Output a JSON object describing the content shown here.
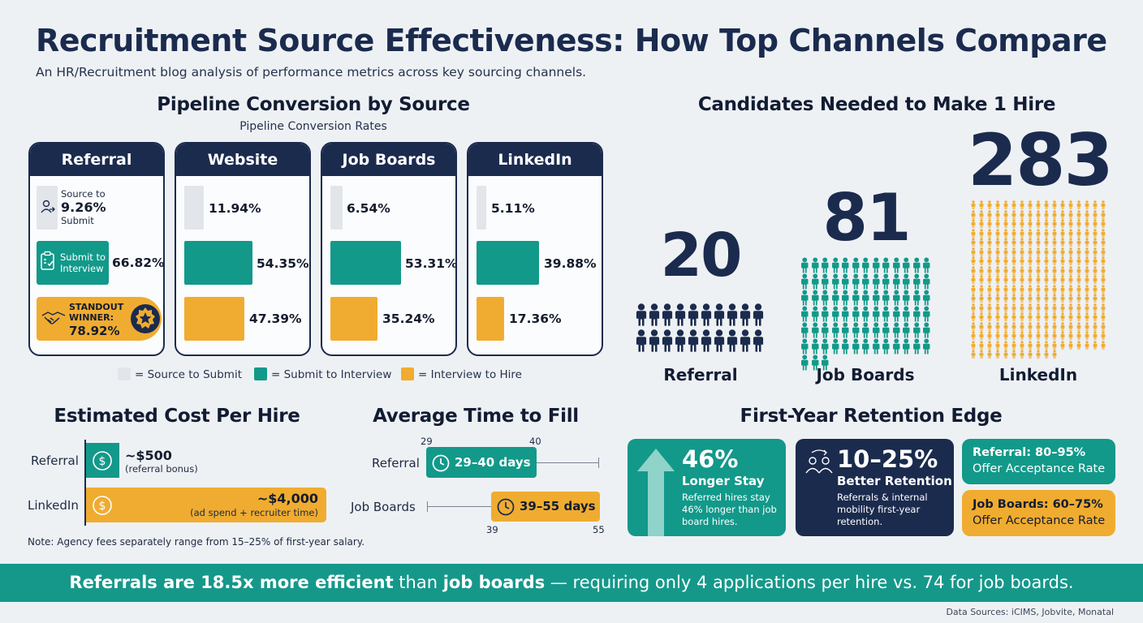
{
  "title": "Recruitment Source Effectiveness: How Top Channels Compare",
  "subtitle": "An HR/Recruitment blog analysis of performance metrics across key sourcing channels.",
  "pipeline": {
    "heading": "Pipeline Conversion by Source",
    "subheading": "Pipeline Conversion Rates",
    "referral": {
      "name": "Referral",
      "source_label_top": "Source to",
      "source_value": "9.26%",
      "source_label_bottom": "Submit",
      "submit_label_1": "Submit to",
      "submit_label_2": "Interview",
      "submit_value": "66.82%",
      "winner_label_1": "STANDOUT",
      "winner_label_2": "WINNER:",
      "winner_value": "78.92%"
    },
    "website": {
      "name": "Website",
      "source": "11.94%",
      "submit": "54.35%",
      "interview": "47.39%"
    },
    "jobboards": {
      "name": "Job Boards",
      "source": "6.54%",
      "submit": "53.31%",
      "interview": "35.24%"
    },
    "linkedin": {
      "name": "LinkedIn",
      "source": "5.11%",
      "submit": "39.88%",
      "interview": "17.36%"
    },
    "legend": {
      "source": "= Source to Submit",
      "submit": "= Submit to Interview",
      "interview": "= Interview to Hire"
    },
    "colors": {
      "source": "#e2e5ea",
      "submit": "#12998a",
      "interview": "#f0ac30",
      "navy": "#1b2b4e"
    }
  },
  "candidates": {
    "heading": "Candidates Needed to Make 1 Hire",
    "referral": {
      "value": "20",
      "label": "Referral",
      "count": 20
    },
    "jobboards": {
      "value": "81",
      "label": "Job Boards",
      "count": 81
    },
    "linkedin": {
      "value": "283",
      "label": "LinkedIn",
      "count": 283
    }
  },
  "cost": {
    "heading": "Estimated Cost Per Hire",
    "referral": {
      "label": "Referral",
      "value": "~$500",
      "note": "(referral bonus)"
    },
    "linkedin": {
      "label": "LinkedIn",
      "value": "~$4,000",
      "note": "(ad spend + recruiter time)"
    },
    "note": "Note: Agency fees separately range from 15–25% of first-year salary."
  },
  "time": {
    "heading": "Average Time to Fill",
    "referral": {
      "label": "Referral",
      "value": "29–40 days",
      "min": "29",
      "max": "40"
    },
    "jobboards": {
      "label": "Job Boards",
      "value": "39–55 days",
      "min": "39",
      "max": "55"
    }
  },
  "retention": {
    "heading": "First-Year Retention Edge",
    "card1": {
      "big": "46%",
      "title": "Longer Stay",
      "body_1": "Referred hires stay",
      "body_2": "46% longer than job",
      "body_3": "board hires."
    },
    "card2": {
      "big": "10–25%",
      "title": "Better Retention",
      "body_1": "Referrals & internal",
      "body_2": "mobility first-year",
      "body_3": "retention."
    },
    "card3": {
      "line1": "Referral: 80–95%",
      "line2": "Offer Acceptance Rate"
    },
    "card4": {
      "line1": "Job Boards: 60–75%",
      "line2": "Offer Acceptance Rate"
    }
  },
  "footer": {
    "part1": "Referrals are 18.5x more efficient",
    "part2": " than ",
    "part3": "job boards",
    "part4": " — requiring only 4 applications per hire vs. 74 for job boards."
  },
  "sources": "Data Sources: iCIMS, Jobvite, Monatal"
}
